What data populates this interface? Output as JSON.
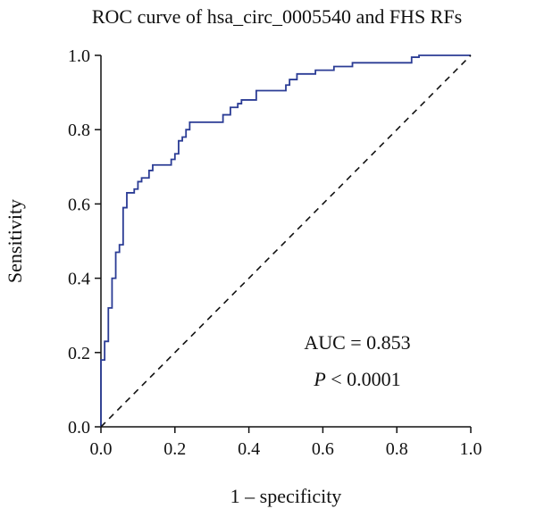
{
  "chart_data": {
    "type": "line",
    "title": "ROC curve of hsa_circ_0005540 and FHS RFs",
    "xlabel": "1 – specificity",
    "ylabel": "Sensitivity",
    "xlim": [
      0,
      1
    ],
    "ylim": [
      0,
      1
    ],
    "x_ticks": [
      "0.0",
      "0.2",
      "0.4",
      "0.6",
      "0.8",
      "1.0"
    ],
    "y_ticks": [
      "0.0",
      "0.2",
      "0.4",
      "0.6",
      "0.8",
      "1.0"
    ],
    "grid": false,
    "series": [
      {
        "color": "#2b3c95",
        "style": "solid",
        "points": [
          [
            0.0,
            0.0
          ],
          [
            0.0,
            0.18
          ],
          [
            0.01,
            0.18
          ],
          [
            0.01,
            0.23
          ],
          [
            0.02,
            0.23
          ],
          [
            0.02,
            0.32
          ],
          [
            0.03,
            0.32
          ],
          [
            0.03,
            0.4
          ],
          [
            0.04,
            0.4
          ],
          [
            0.04,
            0.47
          ],
          [
            0.05,
            0.47
          ],
          [
            0.05,
            0.49
          ],
          [
            0.06,
            0.49
          ],
          [
            0.06,
            0.59
          ],
          [
            0.07,
            0.59
          ],
          [
            0.07,
            0.63
          ],
          [
            0.09,
            0.63
          ],
          [
            0.09,
            0.64
          ],
          [
            0.1,
            0.64
          ],
          [
            0.1,
            0.66
          ],
          [
            0.11,
            0.66
          ],
          [
            0.11,
            0.67
          ],
          [
            0.13,
            0.67
          ],
          [
            0.13,
            0.69
          ],
          [
            0.14,
            0.69
          ],
          [
            0.14,
            0.705
          ],
          [
            0.19,
            0.705
          ],
          [
            0.19,
            0.72
          ],
          [
            0.2,
            0.72
          ],
          [
            0.2,
            0.735
          ],
          [
            0.21,
            0.735
          ],
          [
            0.21,
            0.77
          ],
          [
            0.22,
            0.77
          ],
          [
            0.22,
            0.78
          ],
          [
            0.23,
            0.78
          ],
          [
            0.23,
            0.8
          ],
          [
            0.24,
            0.8
          ],
          [
            0.24,
            0.82
          ],
          [
            0.33,
            0.82
          ],
          [
            0.33,
            0.84
          ],
          [
            0.35,
            0.84
          ],
          [
            0.35,
            0.86
          ],
          [
            0.37,
            0.86
          ],
          [
            0.37,
            0.87
          ],
          [
            0.38,
            0.87
          ],
          [
            0.38,
            0.88
          ],
          [
            0.42,
            0.88
          ],
          [
            0.42,
            0.905
          ],
          [
            0.5,
            0.905
          ],
          [
            0.5,
            0.92
          ],
          [
            0.51,
            0.92
          ],
          [
            0.51,
            0.935
          ],
          [
            0.53,
            0.935
          ],
          [
            0.53,
            0.95
          ],
          [
            0.58,
            0.95
          ],
          [
            0.58,
            0.96
          ],
          [
            0.63,
            0.96
          ],
          [
            0.63,
            0.97
          ],
          [
            0.68,
            0.97
          ],
          [
            0.68,
            0.98
          ],
          [
            0.84,
            0.98
          ],
          [
            0.84,
            0.995
          ],
          [
            0.86,
            0.995
          ],
          [
            0.86,
            1.0
          ],
          [
            1.0,
            1.0
          ]
        ]
      },
      {
        "color": "#111111",
        "style": "dashed",
        "points": [
          [
            0,
            0
          ],
          [
            1,
            1
          ]
        ]
      }
    ],
    "annotations": {
      "auc": "AUC = 0.853",
      "p_italic": "P",
      "p_rest": " < 0.0001"
    }
  }
}
